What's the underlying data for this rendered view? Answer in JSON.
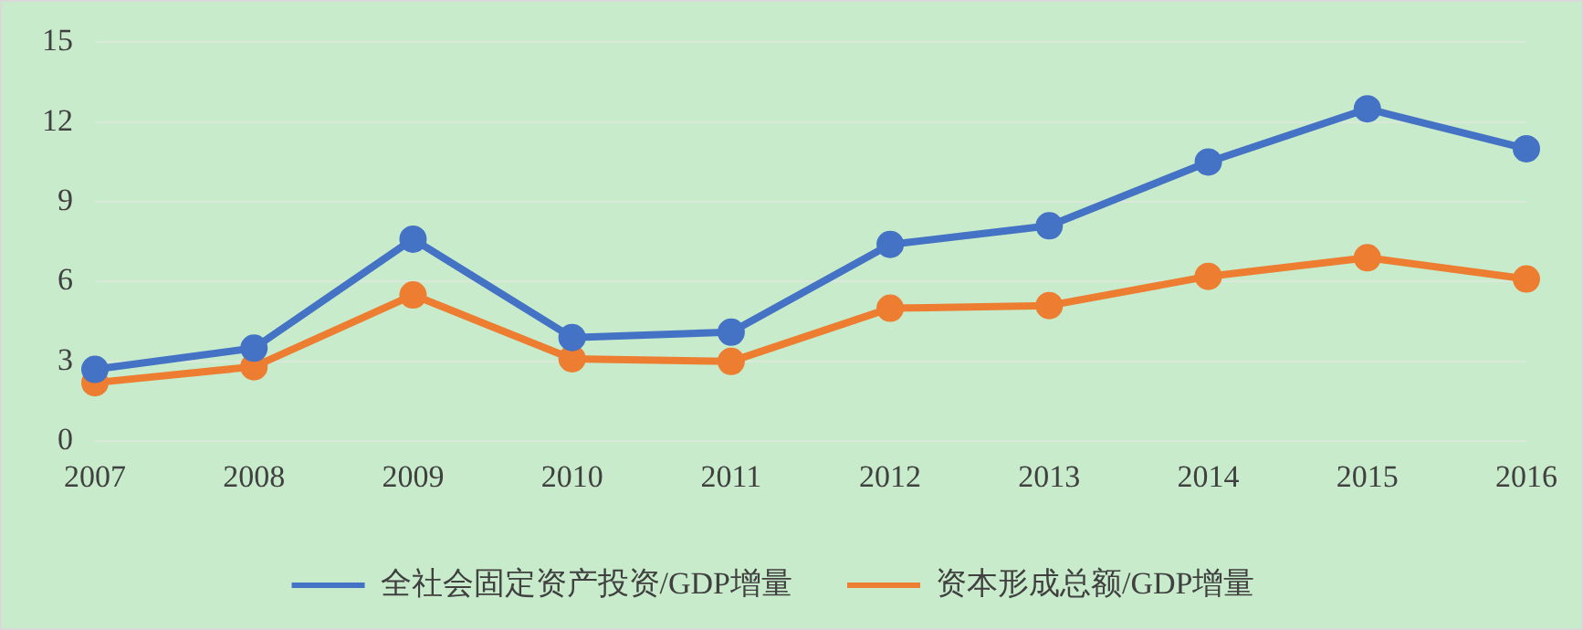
{
  "chart_data": {
    "type": "line",
    "categories": [
      "2007",
      "2008",
      "2009",
      "2010",
      "2011",
      "2012",
      "2013",
      "2014",
      "2015",
      "2016"
    ],
    "series": [
      {
        "name": "全社会固定资产投资/GDP增量",
        "color": "#4472c4",
        "values": [
          2.7,
          3.5,
          7.6,
          3.9,
          4.1,
          7.4,
          8.1,
          10.5,
          12.5,
          11.0
        ]
      },
      {
        "name": "资本形成总额/GDP增量",
        "color": "#ed7d31",
        "values": [
          2.2,
          2.8,
          5.5,
          3.1,
          3.0,
          5.0,
          5.1,
          6.2,
          6.9,
          6.1
        ]
      }
    ],
    "ylim": [
      0,
      15
    ],
    "yticks": [
      0,
      3,
      6,
      9,
      12,
      15
    ],
    "grid": "y",
    "legend": "bottom",
    "marker": "circle",
    "line_style": "solid"
  }
}
